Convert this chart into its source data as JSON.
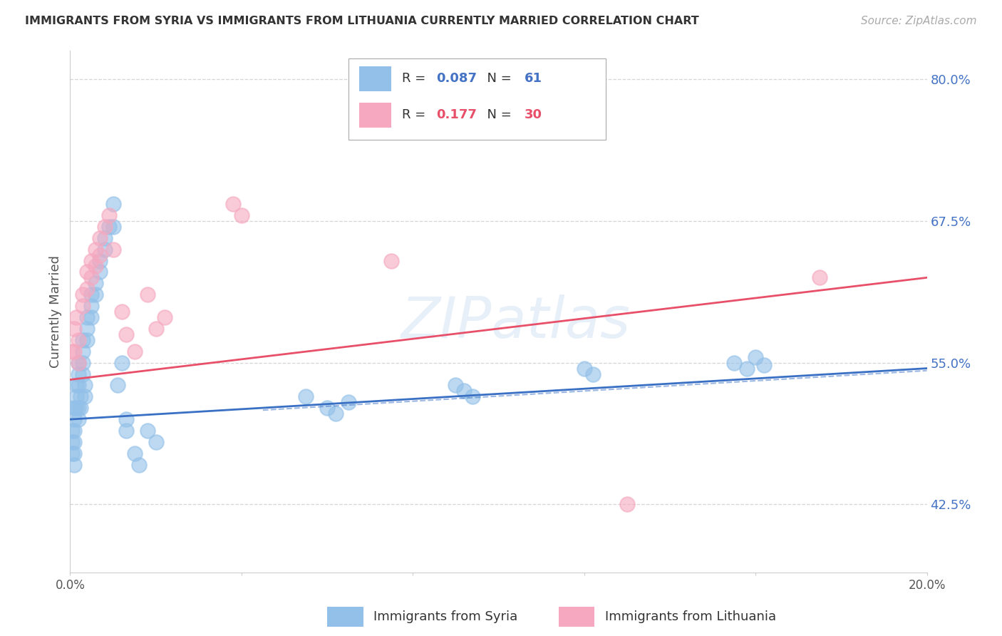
{
  "title": "IMMIGRANTS FROM SYRIA VS IMMIGRANTS FROM LITHUANIA CURRENTLY MARRIED CORRELATION CHART",
  "source": "Source: ZipAtlas.com",
  "ylabel": "Currently Married",
  "xlim": [
    0.0,
    0.2
  ],
  "ylim": [
    0.365,
    0.825
  ],
  "ytick_vals": [
    0.425,
    0.55,
    0.675,
    0.8
  ],
  "ytick_labels": [
    "42.5%",
    "55.0%",
    "67.5%",
    "80.0%"
  ],
  "syria_R": "0.087",
  "syria_N": "61",
  "lithuania_R": "0.177",
  "lithuania_N": "30",
  "syria_color": "#92c0e8",
  "lithuania_color": "#f5a8bf",
  "syria_line_color": "#3a70c4",
  "lithuania_line_color": "#e8506a",
  "background_color": "#ffffff",
  "grid_color": "#cccccc",
  "watermark": "ZIPatlas",
  "syria_label": "Immigrants from Syria",
  "lithuania_label": "Immigrants from Lithuania",
  "syria_x": [
    0.0005,
    0.0005,
    0.0005,
    0.001,
    0.001,
    0.001,
    0.001,
    0.001,
    0.001,
    0.0015,
    0.0015,
    0.0015,
    0.002,
    0.002,
    0.002,
    0.002,
    0.002,
    0.0025,
    0.0025,
    0.003,
    0.003,
    0.003,
    0.003,
    0.0035,
    0.0035,
    0.004,
    0.004,
    0.004,
    0.005,
    0.005,
    0.005,
    0.006,
    0.006,
    0.007,
    0.007,
    0.008,
    0.008,
    0.009,
    0.01,
    0.01,
    0.011,
    0.012,
    0.013,
    0.013,
    0.015,
    0.016,
    0.018,
    0.02,
    0.055,
    0.06,
    0.062,
    0.065,
    0.09,
    0.092,
    0.094,
    0.12,
    0.122,
    0.155,
    0.158,
    0.16,
    0.162
  ],
  "syria_y": [
    0.49,
    0.48,
    0.47,
    0.51,
    0.5,
    0.49,
    0.48,
    0.47,
    0.46,
    0.53,
    0.52,
    0.51,
    0.55,
    0.54,
    0.53,
    0.51,
    0.5,
    0.52,
    0.51,
    0.57,
    0.56,
    0.55,
    0.54,
    0.53,
    0.52,
    0.59,
    0.58,
    0.57,
    0.61,
    0.6,
    0.59,
    0.62,
    0.61,
    0.64,
    0.63,
    0.66,
    0.65,
    0.67,
    0.69,
    0.67,
    0.53,
    0.55,
    0.5,
    0.49,
    0.47,
    0.46,
    0.49,
    0.48,
    0.52,
    0.51,
    0.505,
    0.515,
    0.53,
    0.525,
    0.52,
    0.545,
    0.54,
    0.55,
    0.545,
    0.555,
    0.548
  ],
  "lithuania_x": [
    0.0005,
    0.001,
    0.001,
    0.0015,
    0.002,
    0.002,
    0.003,
    0.003,
    0.004,
    0.004,
    0.005,
    0.005,
    0.006,
    0.006,
    0.007,
    0.007,
    0.008,
    0.009,
    0.01,
    0.012,
    0.013,
    0.015,
    0.018,
    0.02,
    0.022,
    0.038,
    0.04,
    0.075,
    0.13,
    0.175
  ],
  "lithuania_y": [
    0.56,
    0.58,
    0.56,
    0.59,
    0.57,
    0.55,
    0.61,
    0.6,
    0.63,
    0.615,
    0.64,
    0.625,
    0.65,
    0.635,
    0.66,
    0.645,
    0.67,
    0.68,
    0.65,
    0.595,
    0.575,
    0.56,
    0.61,
    0.58,
    0.59,
    0.69,
    0.68,
    0.64,
    0.425,
    0.625
  ],
  "syria_intercept": 0.5,
  "syria_slope": 0.25,
  "lithuania_intercept": 0.53,
  "lithuania_slope": 0.65
}
